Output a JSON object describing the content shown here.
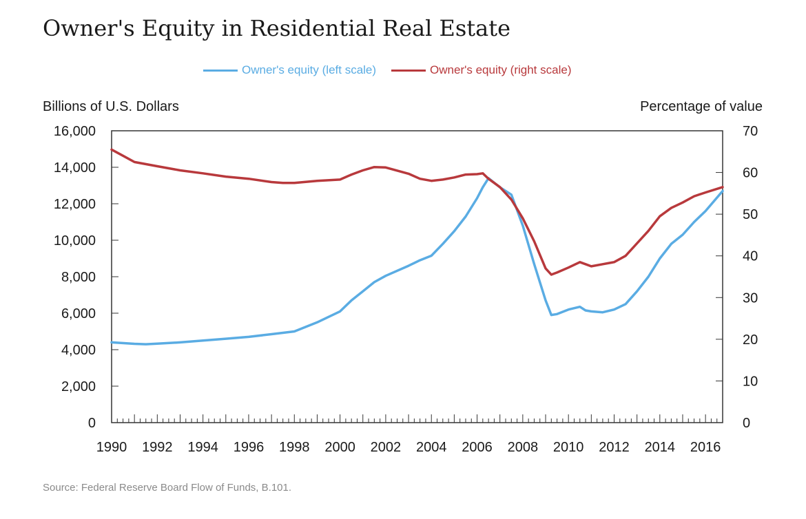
{
  "chart_data": {
    "type": "line",
    "title": "Owner's Equity in Residential Real Estate",
    "left_axis_label": "Billions of U.S. Dollars",
    "right_axis_label": "Percentage of value",
    "source": "Source: Federal Reserve Board Flow of Funds, B.101.",
    "x_range": [
      1990,
      2016.75
    ],
    "x_ticks": [
      "1990",
      "1992",
      "1994",
      "1996",
      "1998",
      "2000",
      "2002",
      "2004",
      "2006",
      "2008",
      "2010",
      "2012",
      "2014",
      "2016"
    ],
    "ylim_left": [
      0,
      16000
    ],
    "ylim_right": [
      0,
      70
    ],
    "yticks_left": [
      "0",
      "2,000",
      "4,000",
      "6,000",
      "8,000",
      "10,000",
      "12,000",
      "14,000",
      "16,000"
    ],
    "yticks_right": [
      "0",
      "10",
      "20",
      "30",
      "40",
      "50",
      "60",
      "70"
    ],
    "legend_position": "top-center",
    "colors": {
      "left_series": "#5aace3",
      "right_series": "#b8393c",
      "axis": "#333333"
    },
    "series": [
      {
        "name": "Owner's equity (left scale)",
        "axis": "left",
        "color": "#5aace3",
        "x": [
          1990,
          1991,
          1991.5,
          1992,
          1993,
          1994,
          1995,
          1996,
          1997,
          1998,
          1999,
          2000,
          2000.5,
          2001,
          2001.5,
          2002,
          2003,
          2003.5,
          2004,
          2004.5,
          2005,
          2005.5,
          2006,
          2006.25,
          2006.5,
          2007,
          2007.5,
          2008,
          2008.5,
          2009,
          2009.25,
          2009.5,
          2010,
          2010.5,
          2010.75,
          2011,
          2011.5,
          2012,
          2012.5,
          2013,
          2013.5,
          2014,
          2014.5,
          2015,
          2015.5,
          2016,
          2016.75
        ],
        "values": [
          4400,
          4320,
          4300,
          4330,
          4400,
          4500,
          4600,
          4700,
          4850,
          5000,
          5500,
          6100,
          6700,
          7200,
          7700,
          8050,
          8600,
          8900,
          9150,
          9800,
          10500,
          11300,
          12300,
          12900,
          13400,
          12900,
          12500,
          10800,
          8700,
          6700,
          5900,
          5950,
          6200,
          6350,
          6150,
          6100,
          6050,
          6200,
          6500,
          7200,
          8000,
          9000,
          9800,
          10300,
          11000,
          11600,
          12700
        ]
      },
      {
        "name": "Owner's equity (right scale)",
        "axis": "right",
        "color": "#b8393c",
        "x": [
          1990,
          1990.5,
          1991,
          1992,
          1993,
          1994,
          1995,
          1996,
          1997,
          1997.5,
          1998,
          1999,
          2000,
          2000.5,
          2001,
          2001.5,
          2002,
          2003,
          2003.5,
          2004,
          2004.5,
          2005,
          2005.5,
          2006,
          2006.25,
          2006.5,
          2007,
          2007.5,
          2008,
          2008.5,
          2009,
          2009.25,
          2009.5,
          2010,
          2010.5,
          2010.75,
          2011,
          2011.5,
          2012,
          2012.5,
          2013,
          2013.5,
          2014,
          2014.5,
          2015,
          2015.5,
          2016,
          2016.75
        ],
        "values": [
          65.5,
          64,
          62.5,
          61.5,
          60.5,
          59.8,
          59,
          58.5,
          57.7,
          57.5,
          57.5,
          58,
          58.3,
          59.5,
          60.5,
          61.3,
          61.2,
          59.7,
          58.5,
          58.0,
          58.3,
          58.8,
          59.5,
          59.6,
          59.8,
          58.5,
          56.5,
          53.5,
          49.0,
          43.5,
          37.0,
          35.5,
          36.0,
          37.2,
          38.5,
          38.0,
          37.5,
          38.0,
          38.5,
          40.0,
          43.0,
          46.0,
          49.5,
          51.5,
          52.8,
          54.3,
          55.2,
          56.5
        ]
      }
    ]
  }
}
